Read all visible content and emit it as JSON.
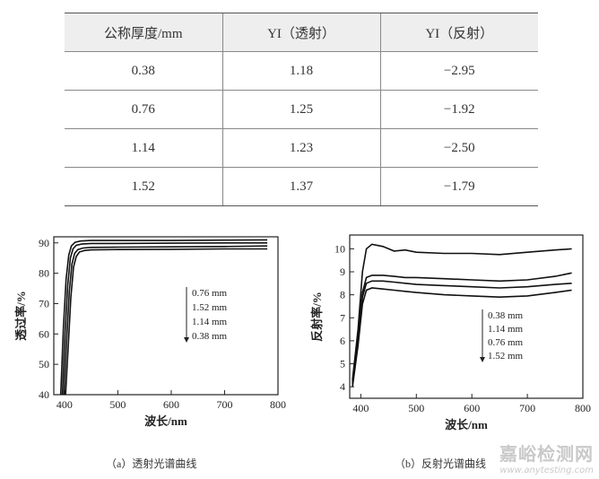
{
  "table": {
    "headers": [
      "公称厚度/mm",
      "YI（透射）",
      "YI（反射）"
    ],
    "rows": [
      [
        "0.38",
        "1.18",
        "−2.95"
      ],
      [
        "0.76",
        "1.25",
        "−1.92"
      ],
      [
        "1.14",
        "1.23",
        "−2.50"
      ],
      [
        "1.52",
        "1.37",
        "−1.79"
      ]
    ]
  },
  "chart_data": [
    {
      "type": "line",
      "caption": "（a）透射光谱曲线",
      "xlabel": "波长/nm",
      "ylabel": "透过率/%",
      "xlim": [
        380,
        800
      ],
      "ylim": [
        40,
        92
      ],
      "xticks": [
        400,
        500,
        600,
        700,
        800
      ],
      "yticks": [
        40,
        50,
        60,
        70,
        80,
        90
      ],
      "legend_order": [
        "0.76 mm",
        "1.52 mm",
        "1.14 mm",
        "0.38 mm"
      ],
      "series": [
        {
          "name": "0.76 mm",
          "x": [
            393,
            398,
            403,
            408,
            413,
            420,
            430,
            450,
            500,
            600,
            700,
            780
          ],
          "y": [
            40,
            62,
            78,
            86,
            89,
            90.2,
            90.6,
            90.8,
            90.8,
            90.8,
            90.9,
            91
          ]
        },
        {
          "name": "1.52 mm",
          "x": [
            396,
            401,
            406,
            411,
            416,
            422,
            432,
            450,
            500,
            600,
            700,
            780
          ],
          "y": [
            40,
            60,
            76,
            85,
            88,
            89.2,
            89.6,
            89.8,
            89.8,
            89.9,
            90,
            90
          ]
        },
        {
          "name": "1.14 mm",
          "x": [
            399,
            404,
            409,
            414,
            419,
            425,
            435,
            450,
            500,
            600,
            700,
            780
          ],
          "y": [
            40,
            58,
            74,
            83,
            86.5,
            87.8,
            88.3,
            88.5,
            88.6,
            88.7,
            88.8,
            89
          ]
        },
        {
          "name": "0.38 mm",
          "x": [
            402,
            407,
            412,
            417,
            422,
            428,
            438,
            450,
            500,
            600,
            700,
            780
          ],
          "y": [
            40,
            56,
            72,
            82,
            85.5,
            87,
            87.5,
            87.7,
            87.8,
            87.9,
            88,
            88
          ]
        }
      ]
    },
    {
      "type": "line",
      "caption": "（b）反射光谱曲线",
      "xlabel": "波长/nm",
      "ylabel": "反射率/%",
      "xlim": [
        380,
        800
      ],
      "ylim": [
        3.5,
        10.6
      ],
      "xticks": [
        400,
        500,
        600,
        700,
        800
      ],
      "yticks": [
        4,
        5,
        6,
        7,
        8,
        9,
        10
      ],
      "legend_order": [
        "0.38 mm",
        "1.14 mm",
        "0.76 mm",
        "1.52 mm"
      ],
      "series": [
        {
          "name": "0.38 mm",
          "x": [
            385,
            395,
            403,
            410,
            420,
            440,
            460,
            480,
            500,
            550,
            600,
            650,
            700,
            750,
            780
          ],
          "y": [
            4.3,
            6.5,
            9.0,
            10.0,
            10.2,
            10.1,
            9.9,
            9.95,
            9.85,
            9.8,
            9.8,
            9.75,
            9.85,
            9.95,
            10.0
          ]
        },
        {
          "name": "1.14 mm",
          "x": [
            385,
            395,
            403,
            410,
            420,
            440,
            460,
            480,
            500,
            550,
            600,
            650,
            700,
            750,
            780
          ],
          "y": [
            4.2,
            6.2,
            8.1,
            8.75,
            8.85,
            8.85,
            8.8,
            8.75,
            8.75,
            8.7,
            8.65,
            8.6,
            8.65,
            8.8,
            8.95
          ]
        },
        {
          "name": "0.76 mm",
          "x": [
            385,
            395,
            403,
            410,
            420,
            440,
            460,
            480,
            500,
            550,
            600,
            650,
            700,
            750,
            780
          ],
          "y": [
            4.1,
            6.0,
            7.9,
            8.5,
            8.6,
            8.6,
            8.55,
            8.5,
            8.45,
            8.4,
            8.35,
            8.3,
            8.35,
            8.45,
            8.5
          ]
        },
        {
          "name": "1.52 mm",
          "x": [
            385,
            395,
            403,
            410,
            420,
            440,
            460,
            480,
            500,
            550,
            600,
            650,
            700,
            750,
            780
          ],
          "y": [
            4.0,
            5.8,
            7.6,
            8.2,
            8.3,
            8.25,
            8.2,
            8.15,
            8.1,
            8.0,
            7.95,
            7.9,
            7.95,
            8.1,
            8.2
          ]
        }
      ]
    }
  ],
  "watermark": {
    "cn": "嘉峪检测网",
    "en": "www.anytesting.com"
  }
}
